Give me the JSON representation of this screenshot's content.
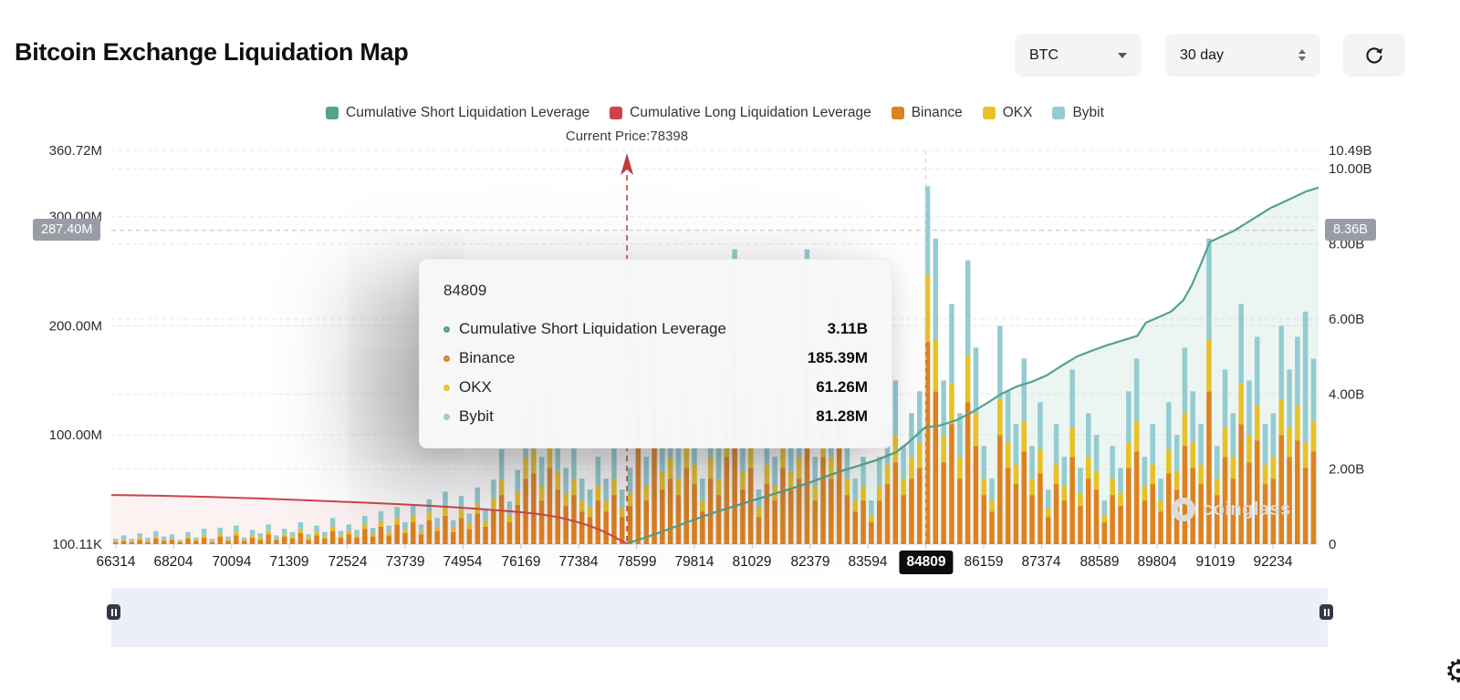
{
  "header": {
    "title": "Bitcoin Exchange Liquidation Map",
    "coin_select": "BTC",
    "period_select": "30 day"
  },
  "theme": {
    "green": "#54a28b",
    "red": "#d0424c",
    "binance": "#de811f",
    "okx": "#e7c126",
    "bybit": "#93ccd1",
    "badge_bg": "#979da4",
    "highlight_bg": "#0d0d0d",
    "brush_bg": "#eceefa"
  },
  "legend": {
    "items": [
      {
        "label": "Cumulative Short Liquidation Leverage",
        "color_key": "green"
      },
      {
        "label": "Cumulative Long Liquidation Leverage",
        "color_key": "red"
      },
      {
        "label": "Binance",
        "color_key": "binance"
      },
      {
        "label": "OKX",
        "color_key": "okx"
      },
      {
        "label": "Bybit",
        "color_key": "bybit"
      }
    ]
  },
  "tooltip": {
    "title": "84809",
    "rows": [
      {
        "icon": "short-marker-icon",
        "label": "Cumulative Short Liquidation Leverage",
        "value": "3.11B",
        "color_key": "green"
      },
      {
        "icon": "binance-marker-icon",
        "label": "Binance",
        "value": "185.39M",
        "color_key": "binance"
      },
      {
        "icon": "okx-marker-icon",
        "label": "OKX",
        "value": "61.26M",
        "color_key": "okx"
      },
      {
        "icon": "bybit-marker-icon",
        "label": "Bybit",
        "value": "81.28M",
        "color_key": "bybit"
      }
    ]
  },
  "watermark": {
    "text": "coinglass"
  },
  "chart_data": {
    "type": "mixed",
    "x_ticks": [
      "66314",
      "68204",
      "70094",
      "71309",
      "72524",
      "73739",
      "74954",
      "76169",
      "77384",
      "78599",
      "79814",
      "81029",
      "82379",
      "83594",
      "84809",
      "86159",
      "87374",
      "88589",
      "89804",
      "91019",
      "92234"
    ],
    "highlighted_index": 14,
    "current_price": {
      "label": "Current Price:78398",
      "value": 78398
    },
    "crosshair": {
      "left_badge": "287.40M",
      "right_badge": "8.36B",
      "left_value": 287.4
    },
    "left_axis": {
      "max": 360.72,
      "unit": "M",
      "grid": [
        100,
        200,
        300,
        360.72
      ],
      "ticks": [
        {
          "label": "360.72M",
          "v": 360.72
        },
        {
          "label": "300.00M",
          "v": 300
        },
        {
          "label": "200.00M",
          "v": 200
        },
        {
          "label": "100.00M",
          "v": 100
        },
        {
          "label": "100.11K",
          "v": 0.1
        }
      ]
    },
    "right_axis": {
      "max": 10.49,
      "unit": "B",
      "grid": [
        2,
        4,
        6,
        8,
        10
      ],
      "ticks": [
        {
          "label": "10.49B",
          "v": 10.49
        },
        {
          "label": "10.00B",
          "v": 10
        },
        {
          "label": "8.00B",
          "v": 8
        },
        {
          "label": "6.00B",
          "v": 6
        },
        {
          "label": "4.00B",
          "v": 4
        },
        {
          "label": "2.00B",
          "v": 2
        },
        {
          "label": "0",
          "v": 0
        }
      ]
    },
    "series": {
      "bars_unit": "M",
      "bars_order": [
        "Binance",
        "OKX",
        "Bybit"
      ],
      "bars": [
        [
          2,
          1,
          2
        ],
        [
          3,
          1,
          4
        ],
        [
          2,
          1,
          2
        ],
        [
          4,
          2,
          4
        ],
        [
          2,
          1,
          3
        ],
        [
          5,
          2,
          5
        ],
        [
          3,
          1,
          3
        ],
        [
          4,
          1,
          4
        ],
        [
          2,
          1,
          1
        ],
        [
          5,
          2,
          4
        ],
        [
          3,
          1,
          2
        ],
        [
          6,
          2,
          6
        ],
        [
          2,
          1,
          2
        ],
        [
          7,
          3,
          5
        ],
        [
          3,
          1,
          3
        ],
        [
          8,
          3,
          6
        ],
        [
          3,
          1,
          2
        ],
        [
          6,
          2,
          5
        ],
        [
          4,
          2,
          4
        ],
        [
          9,
          3,
          6
        ],
        [
          4,
          1,
          3
        ],
        [
          7,
          2,
          5
        ],
        [
          5,
          2,
          4
        ],
        [
          10,
          3,
          7
        ],
        [
          4,
          2,
          3
        ],
        [
          8,
          3,
          6
        ],
        [
          5,
          2,
          4
        ],
        [
          12,
          4,
          8
        ],
        [
          6,
          2,
          4
        ],
        [
          9,
          3,
          6
        ],
        [
          6,
          2,
          5
        ],
        [
          14,
          4,
          8
        ],
        [
          7,
          3,
          5
        ],
        [
          16,
          5,
          9
        ],
        [
          8,
          3,
          6
        ],
        [
          18,
          6,
          10
        ],
        [
          10,
          3,
          7
        ],
        [
          20,
          6,
          10
        ],
        [
          9,
          3,
          6
        ],
        [
          22,
          7,
          12
        ],
        [
          12,
          4,
          8
        ],
        [
          26,
          8,
          14
        ],
        [
          11,
          4,
          7
        ],
        [
          24,
          8,
          12
        ],
        [
          14,
          5,
          9
        ],
        [
          28,
          9,
          15
        ],
        [
          16,
          5,
          10
        ],
        [
          32,
          10,
          17
        ],
        [
          45,
          14,
          28
        ],
        [
          20,
          7,
          12
        ],
        [
          36,
          12,
          20
        ],
        [
          60,
          20,
          40
        ],
        [
          65,
          22,
          43
        ],
        [
          40,
          13,
          27
        ],
        [
          70,
          24,
          46
        ],
        [
          50,
          17,
          33
        ],
        [
          35,
          12,
          23
        ],
        [
          45,
          15,
          30
        ],
        [
          30,
          10,
          20
        ],
        [
          25,
          9,
          16
        ],
        [
          40,
          14,
          26
        ],
        [
          30,
          10,
          20
        ],
        [
          45,
          15,
          30
        ],
        [
          25,
          8,
          17
        ],
        [
          35,
          12,
          23
        ],
        [
          90,
          30,
          60
        ],
        [
          40,
          14,
          26
        ],
        [
          95,
          32,
          63
        ],
        [
          50,
          17,
          33
        ],
        [
          60,
          20,
          40
        ],
        [
          45,
          15,
          30
        ],
        [
          70,
          24,
          46
        ],
        [
          55,
          18,
          37
        ],
        [
          30,
          10,
          20
        ],
        [
          60,
          20,
          40
        ],
        [
          45,
          15,
          30
        ],
        [
          80,
          27,
          53
        ],
        [
          135,
          45,
          90
        ],
        [
          50,
          17,
          33
        ],
        [
          70,
          23,
          47
        ],
        [
          25,
          9,
          16
        ],
        [
          55,
          18,
          37
        ],
        [
          40,
          13,
          27
        ],
        [
          70,
          24,
          46
        ],
        [
          50,
          17,
          33
        ],
        [
          60,
          20,
          40
        ],
        [
          135,
          45,
          90
        ],
        [
          40,
          13,
          27
        ],
        [
          80,
          27,
          53
        ],
        [
          60,
          20,
          40
        ],
        [
          115,
          38,
          77
        ],
        [
          45,
          15,
          30
        ],
        [
          30,
          10,
          20
        ],
        [
          40,
          13,
          27
        ],
        [
          20,
          7,
          13
        ],
        [
          40,
          13,
          27
        ],
        [
          55,
          18,
          37
        ],
        [
          75,
          25,
          50
        ],
        [
          45,
          15,
          30
        ],
        [
          60,
          20,
          40
        ],
        [
          70,
          23,
          47
        ],
        [
          185.39,
          61.26,
          81.28
        ],
        [
          140,
          47,
          93
        ],
        [
          75,
          25,
          50
        ],
        [
          110,
          37,
          73
        ],
        [
          60,
          20,
          40
        ],
        [
          130,
          43,
          87
        ],
        [
          90,
          30,
          60
        ],
        [
          45,
          15,
          30
        ],
        [
          30,
          10,
          20
        ],
        [
          100,
          33,
          67
        ],
        [
          70,
          23,
          47
        ],
        [
          55,
          18,
          37
        ],
        [
          85,
          28,
          57
        ],
        [
          45,
          15,
          30
        ],
        [
          65,
          22,
          43
        ],
        [
          25,
          8,
          17
        ],
        [
          55,
          18,
          37
        ],
        [
          40,
          13,
          27
        ],
        [
          80,
          27,
          53
        ],
        [
          35,
          12,
          23
        ],
        [
          60,
          20,
          40
        ],
        [
          50,
          17,
          33
        ],
        [
          20,
          7,
          13
        ],
        [
          45,
          15,
          30
        ],
        [
          35,
          12,
          23
        ],
        [
          70,
          23,
          47
        ],
        [
          85,
          28,
          57
        ],
        [
          40,
          13,
          27
        ],
        [
          55,
          18,
          37
        ],
        [
          30,
          10,
          20
        ],
        [
          65,
          22,
          43
        ],
        [
          50,
          17,
          33
        ],
        [
          90,
          30,
          60
        ],
        [
          70,
          23,
          47
        ],
        [
          55,
          18,
          37
        ],
        [
          140,
          47,
          93
        ],
        [
          45,
          15,
          30
        ],
        [
          80,
          27,
          53
        ],
        [
          60,
          20,
          40
        ],
        [
          110,
          37,
          73
        ],
        [
          75,
          25,
          50
        ],
        [
          95,
          32,
          63
        ],
        [
          55,
          18,
          37
        ],
        [
          60,
          20,
          40
        ],
        [
          100,
          33,
          67
        ],
        [
          80,
          27,
          53
        ],
        [
          95,
          32,
          63
        ],
        [
          70,
          23,
          120
        ],
        [
          85,
          28,
          57
        ]
      ],
      "lines_unit": "B",
      "short_line": [
        [
          0.427,
          0.02
        ],
        [
          0.44,
          0.15
        ],
        [
          0.455,
          0.32
        ],
        [
          0.47,
          0.5
        ],
        [
          0.485,
          0.68
        ],
        [
          0.5,
          0.85
        ],
        [
          0.515,
          1.0
        ],
        [
          0.53,
          1.15
        ],
        [
          0.545,
          1.3
        ],
        [
          0.56,
          1.45
        ],
        [
          0.575,
          1.6
        ],
        [
          0.59,
          1.78
        ],
        [
          0.605,
          1.95
        ],
        [
          0.62,
          2.1
        ],
        [
          0.635,
          2.25
        ],
        [
          0.65,
          2.45
        ],
        [
          0.66,
          2.7
        ],
        [
          0.674,
          3.11
        ],
        [
          0.685,
          3.15
        ],
        [
          0.7,
          3.3
        ],
        [
          0.712,
          3.5
        ],
        [
          0.725,
          3.75
        ],
        [
          0.737,
          4.0
        ],
        [
          0.75,
          4.2
        ],
        [
          0.762,
          4.32
        ],
        [
          0.775,
          4.5
        ],
        [
          0.787,
          4.75
        ],
        [
          0.8,
          5.0
        ],
        [
          0.812,
          5.15
        ],
        [
          0.825,
          5.3
        ],
        [
          0.837,
          5.42
        ],
        [
          0.85,
          5.55
        ],
        [
          0.857,
          5.9
        ],
        [
          0.868,
          6.05
        ],
        [
          0.878,
          6.2
        ],
        [
          0.888,
          6.5
        ],
        [
          0.895,
          6.9
        ],
        [
          0.903,
          7.5
        ],
        [
          0.91,
          8.05
        ],
        [
          0.92,
          8.2
        ],
        [
          0.93,
          8.35
        ],
        [
          0.94,
          8.55
        ],
        [
          0.95,
          8.75
        ],
        [
          0.96,
          8.95
        ],
        [
          0.97,
          9.1
        ],
        [
          0.98,
          9.25
        ],
        [
          0.99,
          9.4
        ],
        [
          1.0,
          9.5
        ]
      ],
      "long_line": [
        [
          0,
          1.31
        ],
        [
          0.04,
          1.29
        ],
        [
          0.08,
          1.26
        ],
        [
          0.12,
          1.22
        ],
        [
          0.16,
          1.17
        ],
        [
          0.2,
          1.12
        ],
        [
          0.24,
          1.06
        ],
        [
          0.27,
          1.01
        ],
        [
          0.3,
          0.95
        ],
        [
          0.32,
          0.9
        ],
        [
          0.34,
          0.85
        ],
        [
          0.355,
          0.8
        ],
        [
          0.37,
          0.72
        ],
        [
          0.385,
          0.6
        ],
        [
          0.395,
          0.5
        ],
        [
          0.405,
          0.38
        ],
        [
          0.415,
          0.22
        ],
        [
          0.423,
          0.08
        ],
        [
          0.427,
          0.02
        ]
      ]
    }
  }
}
